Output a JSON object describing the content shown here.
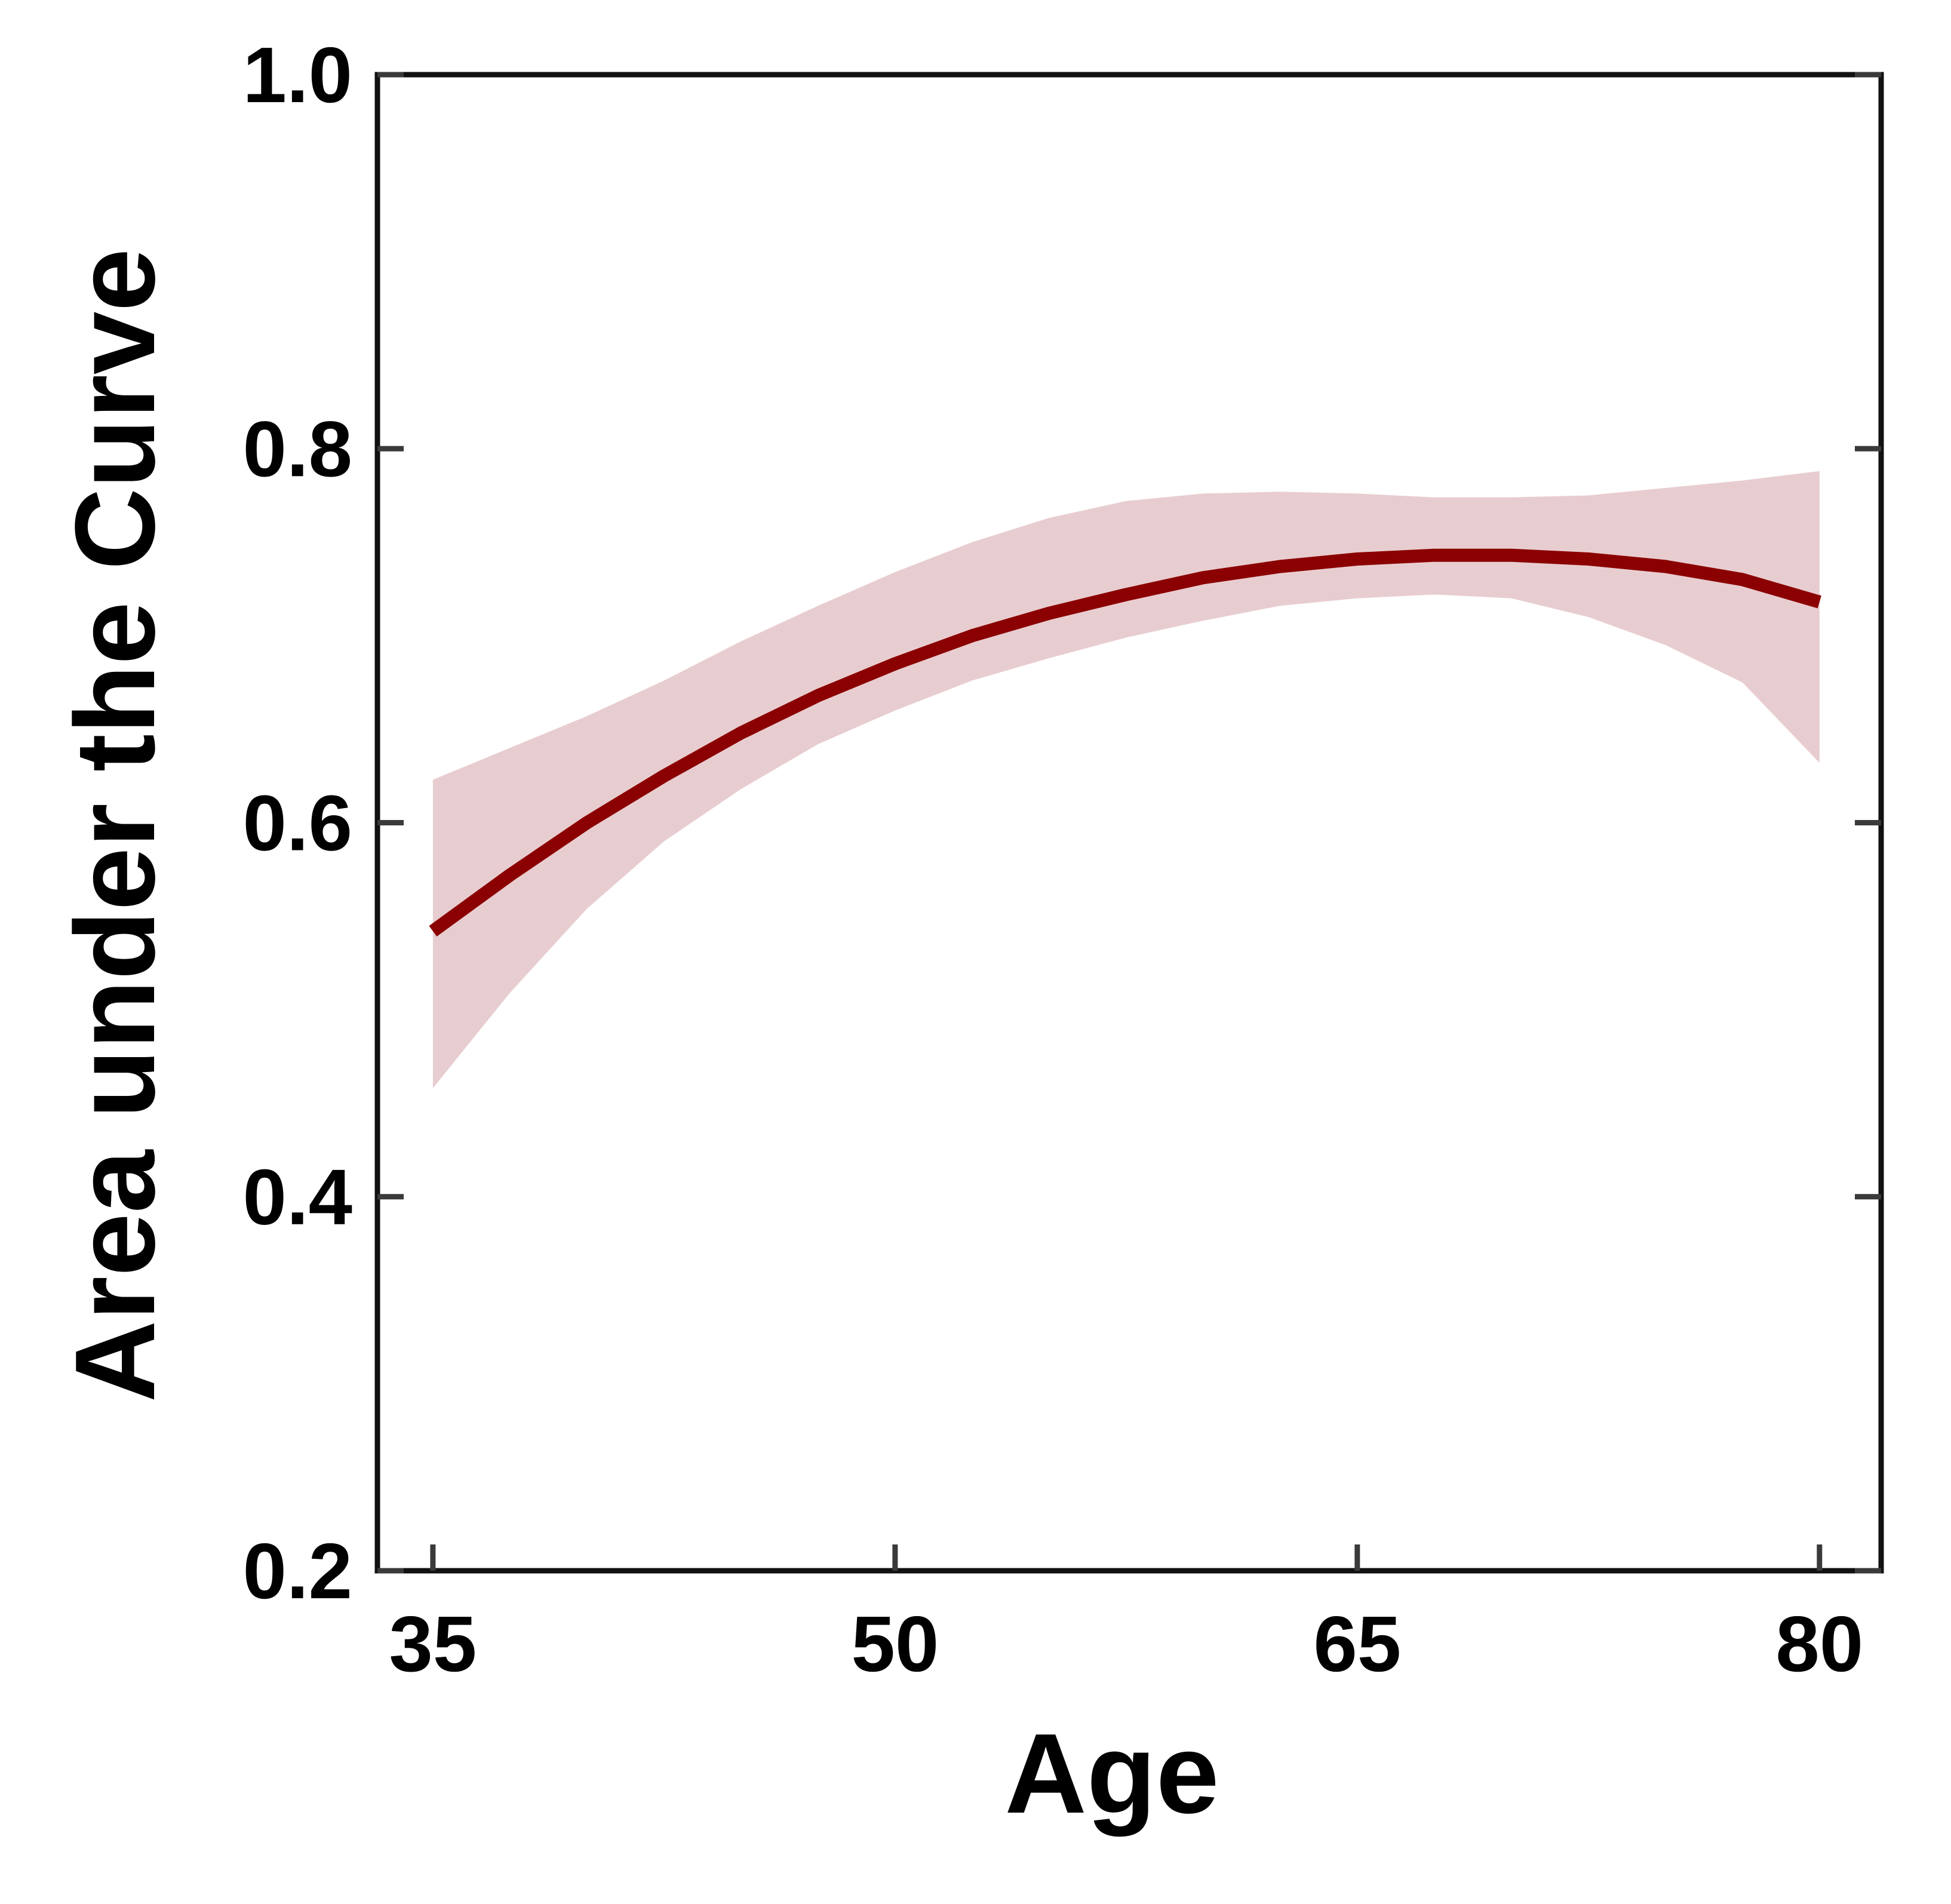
{
  "chart_data": {
    "type": "line",
    "title": "",
    "xlabel": "Age",
    "ylabel": "Area under the Curve",
    "xlim": [
      33.2,
      82
    ],
    "ylim": [
      0.2,
      1.0
    ],
    "x_ticks": [
      35,
      50,
      65,
      80
    ],
    "x_tick_labels": [
      "35",
      "50",
      "65",
      "80"
    ],
    "y_ticks": [
      0.2,
      0.4,
      0.6,
      0.8,
      1.0
    ],
    "y_tick_labels": [
      "0.2",
      "0.4",
      "0.6",
      "0.8",
      "1.0"
    ],
    "grid": false,
    "legend": "none",
    "series": [
      {
        "x": [
          35,
          37.5,
          40,
          42.5,
          45,
          47.5,
          50,
          52.5,
          55,
          57.5,
          60,
          62.5,
          65,
          67.5,
          70,
          72.5,
          75,
          77.5,
          80
        ],
        "y": [
          0.542,
          0.572,
          0.6,
          0.625,
          0.648,
          0.668,
          0.685,
          0.7,
          0.712,
          0.722,
          0.731,
          0.737,
          0.741,
          0.743,
          0.743,
          0.741,
          0.737,
          0.73,
          0.718
        ],
        "ci_lower": [
          0.458,
          0.509,
          0.554,
          0.59,
          0.618,
          0.642,
          0.66,
          0.676,
          0.688,
          0.699,
          0.708,
          0.716,
          0.72,
          0.722,
          0.72,
          0.71,
          0.695,
          0.675,
          0.632
        ],
        "ci_upper": [
          0.623,
          0.64,
          0.657,
          0.676,
          0.697,
          0.716,
          0.734,
          0.75,
          0.763,
          0.772,
          0.776,
          0.777,
          0.776,
          0.774,
          0.774,
          0.775,
          0.779,
          0.783,
          0.788
        ]
      }
    ],
    "colors": {
      "line": "#8b0000",
      "band": "#e8cdd0",
      "axes": "#111111",
      "ticks": "#3a3a3a"
    }
  }
}
